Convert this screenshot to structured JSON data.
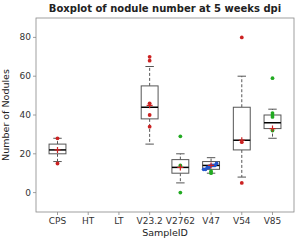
{
  "chart_data": {
    "type": "box",
    "title": "Boxplot of nodule number at 5 weeks dpi",
    "x_label": "SampleID",
    "y_label": "Number of Nodules",
    "categories": [
      "CPS",
      "HT",
      "LT",
      "V23.2",
      "V2762",
      "V47",
      "V54",
      "V85"
    ],
    "ylim": [
      -10,
      90
    ],
    "yticks": [
      0,
      20,
      40,
      60,
      80
    ],
    "grid": false,
    "boxes": [
      {
        "q1": 20,
        "median": 22,
        "q3": 25,
        "whislo": 16,
        "whishi": 28
      },
      {
        "q1": null,
        "median": null,
        "q3": null,
        "whislo": null,
        "whishi": null
      },
      {
        "q1": null,
        "median": null,
        "q3": null,
        "whislo": null,
        "whishi": null
      },
      {
        "q1": 38,
        "median": 44,
        "q3": 55,
        "whislo": 25,
        "whishi": 65
      },
      {
        "q1": 10,
        "median": 13,
        "q3": 17,
        "whislo": 5,
        "whishi": 20
      },
      {
        "q1": 12,
        "median": 14,
        "q3": 16,
        "whislo": 10,
        "whishi": 18
      },
      {
        "q1": 22,
        "median": 27,
        "q3": 44,
        "whislo": 8,
        "whishi": 60
      },
      {
        "q1": 33,
        "median": 36,
        "q3": 40,
        "whislo": 28,
        "whishi": 43
      }
    ],
    "points": [
      {
        "color": "#cc2222",
        "marker": "circle",
        "values": [
          [
            15,
            28
          ],
          [],
          [],
          [
            46,
            40,
            34,
            68,
            70
          ],
          [],
          [],
          [
            5,
            26,
            80
          ],
          []
        ]
      },
      {
        "color": "#22aa22",
        "marker": "circle",
        "values": [
          [],
          [],
          [],
          [],
          [
            0,
            14,
            29
          ],
          [
            10,
            11
          ],
          [],
          [
            32,
            39,
            40,
            41,
            59
          ]
        ]
      },
      {
        "color": "#2255cc",
        "marker": "circle",
        "values": [
          [],
          [],
          [],
          [],
          [],
          [
            12,
            12,
            13,
            13,
            14,
            14,
            14,
            15
          ],
          [],
          []
        ]
      }
    ],
    "means": {
      "color": "#cc2222",
      "marker": "plus",
      "values": [
        22,
        null,
        null,
        45,
        13,
        14,
        27,
        33
      ]
    }
  }
}
